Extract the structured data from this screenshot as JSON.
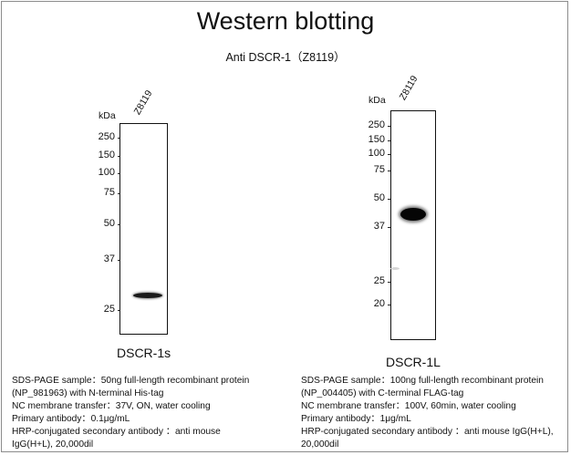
{
  "title": "Western blotting",
  "subtitle": "Anti DSCR-1（Z8119）",
  "left_panel": {
    "axis_unit": "kDa",
    "lane_label": "Z8119",
    "markers": [
      "250",
      "150",
      "100",
      "75",
      "50",
      "37",
      "25"
    ],
    "sample_name": "DSCR-1s",
    "band_kda": 28,
    "info": {
      "line1": "SDS-PAGE sample：50ng full-length recombinant protein",
      "line2": "(NP_981963) with N-terminal His-tag",
      "line3": "NC membrane transfer：37V, ON, water cooling",
      "line4": "Primary antibody：0.1μg/mL",
      "line5": "HRP-conjugated secondary antibody ：anti mouse",
      "line6": "IgG(H+L), 20,000dil"
    }
  },
  "right_panel": {
    "axis_unit": "kDa",
    "lane_label": "Z8119",
    "markers": [
      "250",
      "150",
      "100",
      "75",
      "50",
      "37",
      "25",
      "20"
    ],
    "sample_name": "DSCR-1L",
    "band_kda": 40,
    "info": {
      "line1": "SDS-PAGE sample：100ng full-length recombinant protein",
      "line2": "(NP_004405) with C-terminal FLAG-tag",
      "line3": "NC membrane transfer：100V, 60min, water cooling",
      "line4": "Primary antibody：1μg/mL",
      "line5": "HRP-conjugated secondary antibody ：anti mouse IgG(H+L),",
      "line6": "20,000dil"
    }
  }
}
